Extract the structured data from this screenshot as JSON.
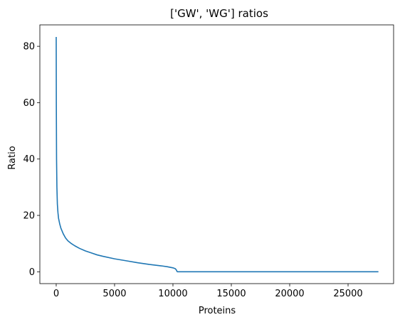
{
  "chart_data": {
    "type": "line",
    "title": "['GW', 'WG'] ratios",
    "xlabel": "Proteins",
    "ylabel": "Ratio",
    "xlim": [
      -1400,
      28900
    ],
    "ylim": [
      -4.2,
      87.6
    ],
    "xticks": [
      0,
      5000,
      10000,
      15000,
      20000,
      25000
    ],
    "xtick_labels": [
      "0",
      "5000",
      "10000",
      "15000",
      "20000",
      "25000"
    ],
    "yticks": [
      0,
      20,
      40,
      60,
      80
    ],
    "ytick_labels": [
      "0",
      "20",
      "40",
      "60",
      "80"
    ],
    "grid": false,
    "series_color": "#1f77b4",
    "series": [
      {
        "x": [
          0,
          10,
          30,
          60,
          100,
          150,
          200,
          300,
          400,
          600,
          800,
          1000,
          1300,
          1600,
          2000,
          2500,
          3000,
          3500,
          4000,
          5000,
          6000,
          7000,
          8000,
          9000,
          9500,
          10000,
          10200,
          10300,
          10350,
          10400,
          12000,
          15000,
          20000,
          25000,
          27600
        ],
        "y": [
          83.3,
          60,
          40,
          30,
          24,
          21,
          19,
          17,
          15.5,
          13.5,
          12,
          11,
          10,
          9.2,
          8.3,
          7.4,
          6.7,
          6.0,
          5.5,
          4.6,
          3.9,
          3.2,
          2.6,
          2.1,
          1.8,
          1.4,
          1.1,
          0.6,
          0.1,
          0.0,
          0.0,
          0.0,
          0.0,
          0.0,
          0.0
        ]
      }
    ]
  }
}
